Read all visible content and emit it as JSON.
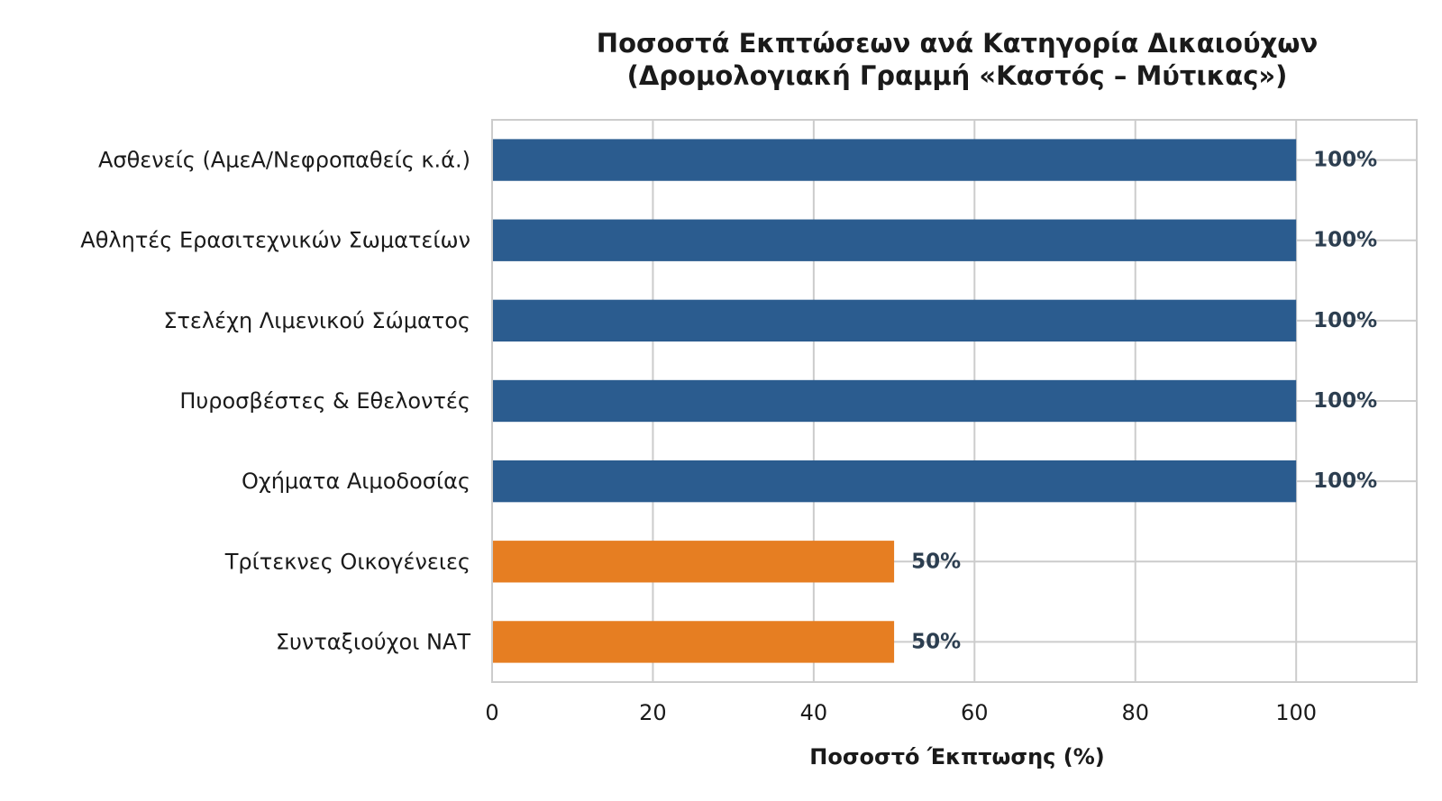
{
  "chart_data": {
    "type": "bar",
    "orientation": "horizontal",
    "title_lines": [
      "Ποσοστά Εκπτώσεων ανά Κατηγορία Δικαιούχων",
      "(Δρομολογιακή Γραμμή «Καστός – Μύτικας»)"
    ],
    "xlabel": "Ποσοστό Έκπτωσης (%)",
    "ylabel": "",
    "xlim": [
      0,
      115
    ],
    "xticks": [
      0,
      20,
      40,
      60,
      80,
      100
    ],
    "grid": true,
    "categories": [
      "Ασθενείς (ΑμεΑ/Νεφροπαθείς κ.ά.)",
      "Αθλητές Ερασιτεχνικών Σωματείων",
      "Στελέχη Λιμενικού Σώματος",
      "Πυροσβέστες & Εθελοντές",
      "Οχήματα Αιμοδοσίας",
      "Τρίτεκνες Οικογένειες",
      "Συνταξιούχοι ΝΑΤ"
    ],
    "values": [
      100,
      100,
      100,
      100,
      100,
      50,
      50
    ],
    "value_labels": [
      "100%",
      "100%",
      "100%",
      "100%",
      "100%",
      "50%",
      "50%"
    ],
    "colors": {
      "full_discount": "#2b5c8f",
      "half_discount": "#e67e22",
      "grid": "#cccccc",
      "frame": "#cccccc",
      "value_text": "#2c3e50"
    }
  }
}
